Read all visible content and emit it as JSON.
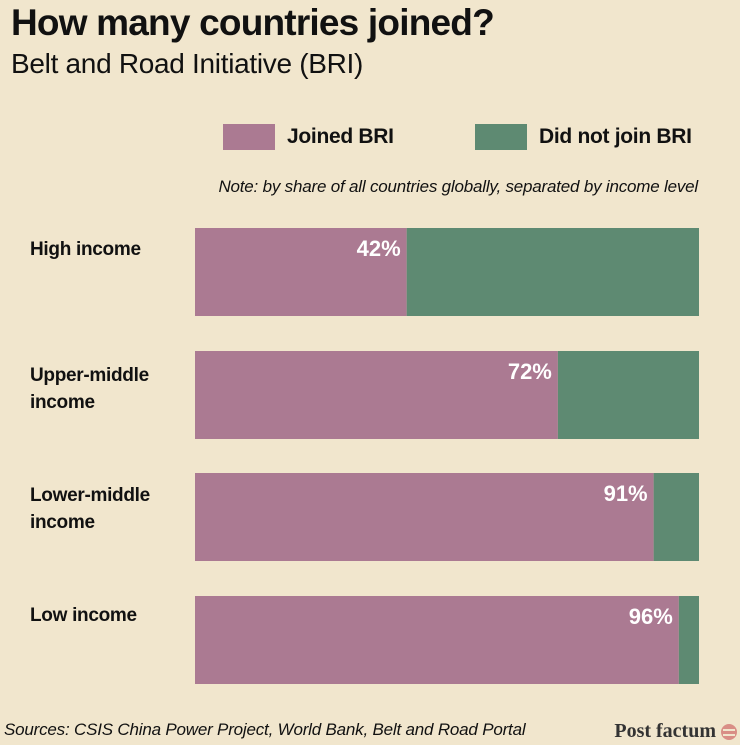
{
  "colors": {
    "background": "#f1e6cd",
    "joined": "#ab7a92",
    "not_joined": "#5e8a72",
    "bar_label": "#ffffff"
  },
  "header": {
    "title": "How many countries joined?",
    "subtitle": "Belt and Road Initiative (BRI)"
  },
  "legend": {
    "position": "top-right",
    "items": [
      {
        "label": "Joined BRI",
        "color": "#ab7a92"
      },
      {
        "label": "Did not join BRI",
        "color": "#5e8a72"
      }
    ]
  },
  "note": "Note: by share of all countries globally, separated by income level",
  "chart_data": {
    "type": "bar",
    "orientation": "horizontal",
    "stacked": true,
    "categories": [
      "High income",
      "Upper-middle income",
      "Lower-middle income",
      "Low income"
    ],
    "series": [
      {
        "name": "Joined BRI",
        "values": [
          42,
          72,
          91,
          96
        ],
        "labels": [
          "42%",
          "72%",
          "91%",
          "96%"
        ]
      },
      {
        "name": "Did not join BRI",
        "values": [
          58,
          28,
          9,
          4
        ]
      }
    ],
    "xlim": [
      0,
      100
    ],
    "grid": false
  },
  "category_labels": [
    [
      "High income"
    ],
    [
      "Upper-middle",
      "income"
    ],
    [
      "Lower-middle",
      "income"
    ],
    [
      "Low income"
    ]
  ],
  "footer": {
    "source": "Sources: CSIS China Power Project, World Bank, Belt and Road Portal",
    "brand": "Post factum",
    "brand_icon": "post-factum-logo-icon"
  }
}
